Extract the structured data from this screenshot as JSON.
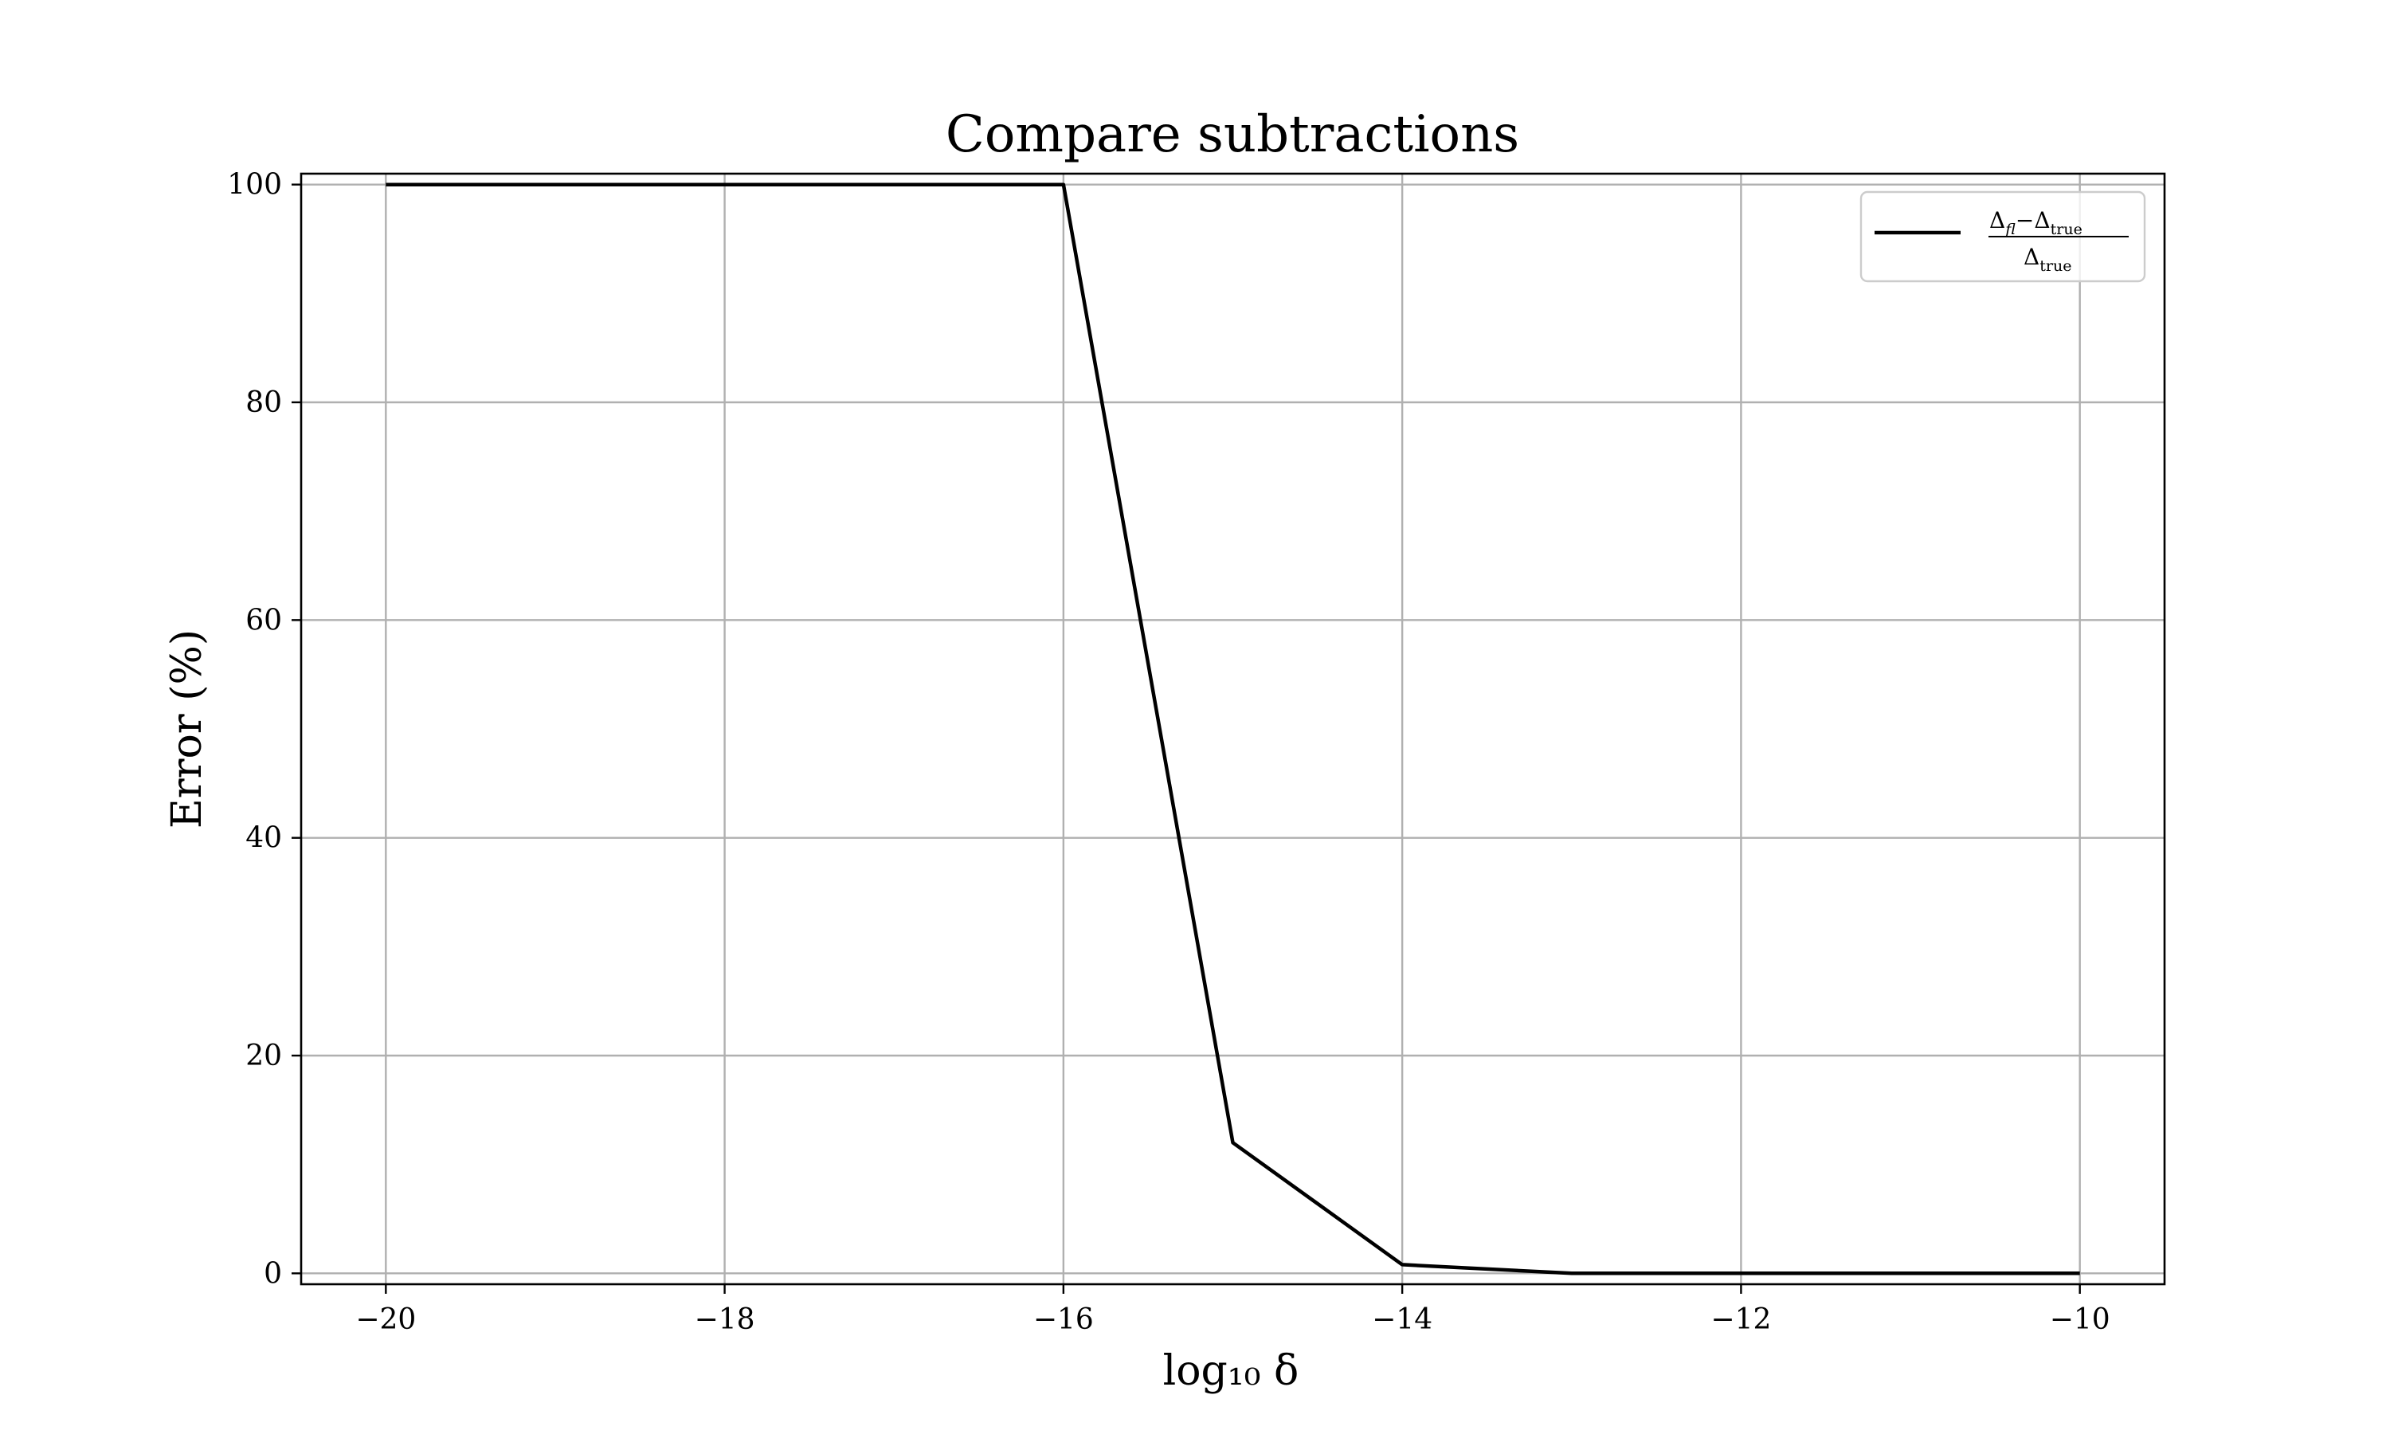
{
  "chart_data": {
    "type": "line",
    "title": "Compare subtractions",
    "xlabel": "log₁₀ δ",
    "ylabel": "Error (%)",
    "xlim": [
      -20.5,
      -9.5
    ],
    "ylim": [
      -1,
      101
    ],
    "grid": true,
    "legend_position": "top-right",
    "x_ticks": [
      -20,
      -18,
      -16,
      -14,
      -12,
      -10
    ],
    "x_tick_labels": [
      "−20",
      "−18",
      "−16",
      "−14",
      "−12",
      "−10"
    ],
    "y_ticks": [
      0,
      20,
      40,
      60,
      80,
      100
    ],
    "y_tick_labels": [
      "0",
      "20",
      "40",
      "60",
      "80",
      "100"
    ],
    "series": [
      {
        "name": "(Δfl − Δtrue) / Δtrue",
        "color": "#000000",
        "x": [
          -20,
          -19,
          -18,
          -17,
          -16,
          -15,
          -14,
          -13,
          -12,
          -11,
          -10
        ],
        "y": [
          100,
          100,
          100,
          100,
          100,
          12,
          0.8,
          0,
          0,
          0,
          0
        ]
      }
    ]
  }
}
